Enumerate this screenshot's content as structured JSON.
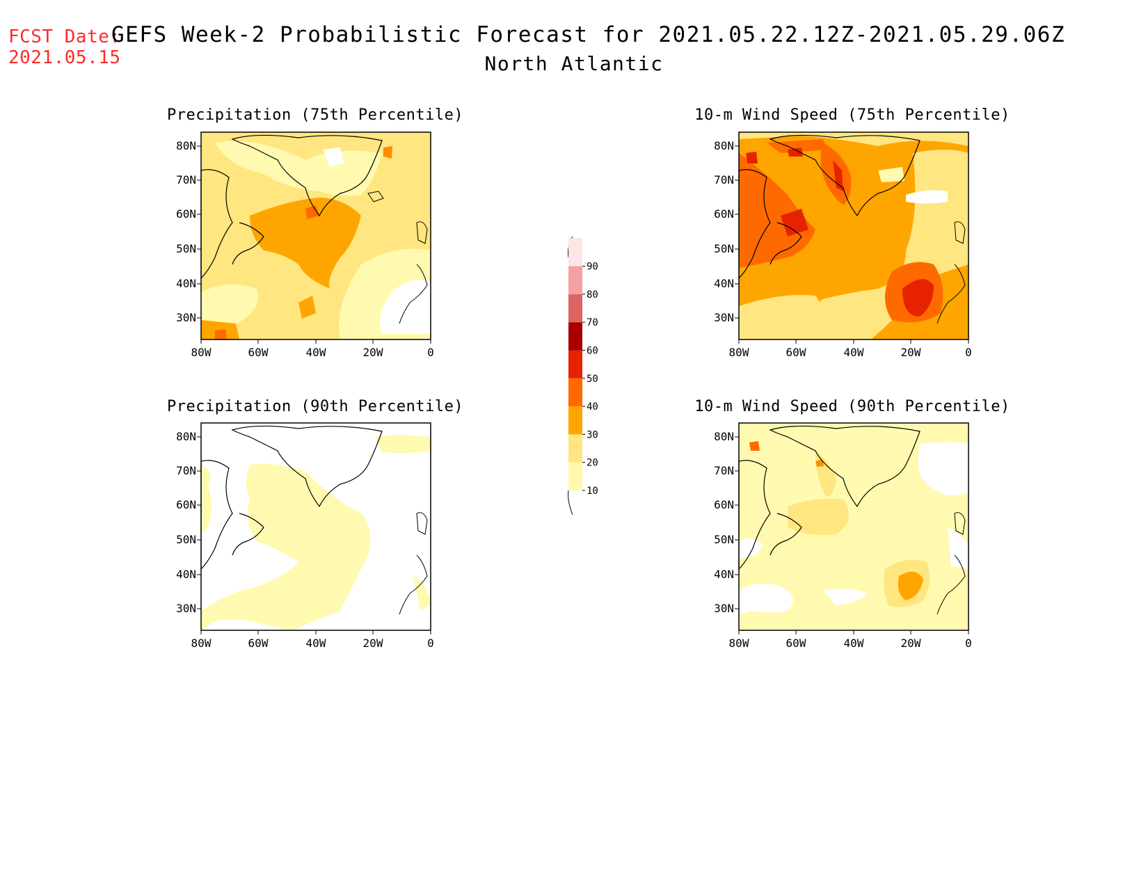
{
  "header": {
    "fcst_label": "FCST Date:",
    "fcst_date": "2021.05.15",
    "title": "GEFS Week-2 Probabilistic Forecast for 2021.05.22.12Z-2021.05.29.06Z",
    "subtitle": "North Atlantic"
  },
  "panels": [
    {
      "title": "Precipitation (75th Percentile)"
    },
    {
      "title": "10-m Wind Speed (75th Percentile)"
    },
    {
      "title": "Precipitation (90th Percentile)"
    },
    {
      "title": "10-m Wind Speed (90th Percentile)"
    }
  ],
  "axes": {
    "lat_ticks": [
      "80N",
      "70N",
      "60N",
      "50N",
      "40N",
      "30N"
    ],
    "lon_ticks": [
      "80W",
      "60W",
      "40W",
      "20W",
      "0"
    ]
  },
  "colorbar": {
    "levels": [
      "10",
      "20",
      "30",
      "40",
      "50",
      "60",
      "70",
      "80",
      "90"
    ],
    "colors": [
      "#fffab0",
      "#ffe680",
      "#ffa500",
      "#ff6a00",
      "#e62200",
      "#a60000",
      "#de6464",
      "#f5a0a0",
      "#ffe4e4"
    ]
  }
}
